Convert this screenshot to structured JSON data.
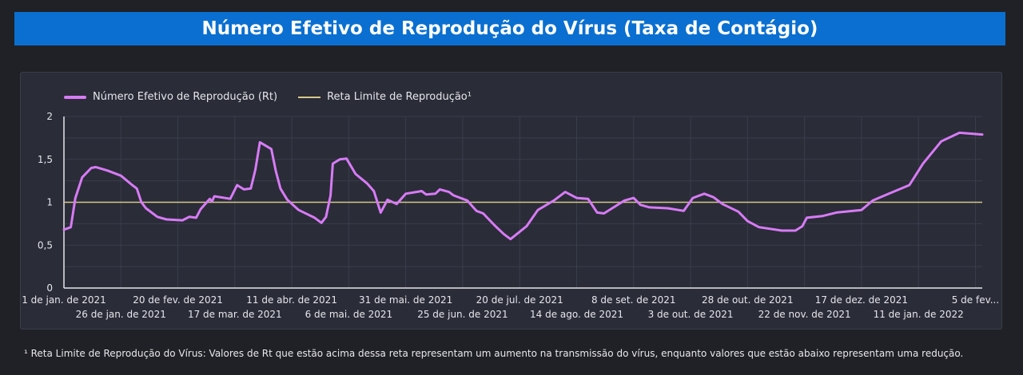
{
  "title": "Número Efetivo de Reprodução do Vírus (Taxa de Contágio)",
  "footnote": "¹ Reta Limite de Reprodução do Vírus: Valores de Rt que estão acima dessa reta representam um aumento na transmissão do vírus, enquanto valores que estão abaixo representam uma redução.",
  "colors": {
    "background": "#202126",
    "panel": "#2a2c38",
    "title_bar": "#0a6fd0",
    "series": "#d77bf5",
    "threshold": "#d4c98a"
  },
  "chart_data": {
    "type": "line",
    "title": "",
    "xlabel": "",
    "ylabel": "",
    "ylim": [
      0,
      2
    ],
    "yticks": [
      "0",
      "0,5",
      "1",
      "1,5",
      "2"
    ],
    "grid": true,
    "legend_position": "top-left",
    "xtick_labels": [
      "1 de jan. de 2021",
      "26 de jan. de 2021",
      "20 de fev. de 2021",
      "17 de mar. de 2021",
      "11 de abr. de 2021",
      "6 de mai. de 2021",
      "31 de mai. de 2021",
      "25 de jun. de 2021",
      "20 de jul. de 2021",
      "14 de ago. de 2021",
      "8 de set. de 2021",
      "3 de out. de 2021",
      "28 de out. de 2021",
      "22 de nov. de 2021",
      "17 de dez. de 2021",
      "11 de jan. de 2022",
      "5 de fev..."
    ],
    "xlim": [
      "2021-01-01",
      "2022-02-08"
    ],
    "series": [
      {
        "name": "Número Efetivo de Reprodução (Rt)",
        "color": "#d77bf5",
        "x": [
          "2021-01-01",
          "2021-01-04",
          "2021-01-06",
          "2021-01-09",
          "2021-01-13",
          "2021-01-15",
          "2021-01-20",
          "2021-01-26",
          "2021-01-31",
          "2021-02-02",
          "2021-02-04",
          "2021-02-06",
          "2021-02-11",
          "2021-02-15",
          "2021-02-22",
          "2021-02-25",
          "2021-02-28",
          "2021-03-02",
          "2021-03-06",
          "2021-03-07",
          "2021-03-08",
          "2021-03-15",
          "2021-03-18",
          "2021-03-21",
          "2021-03-24",
          "2021-03-26",
          "2021-03-28",
          "2021-04-02",
          "2021-04-04",
          "2021-04-06",
          "2021-04-09",
          "2021-04-14",
          "2021-04-21",
          "2021-04-24",
          "2021-04-26",
          "2021-04-28",
          "2021-04-29",
          "2021-05-02",
          "2021-05-05",
          "2021-05-09",
          "2021-05-14",
          "2021-05-17",
          "2021-05-20",
          "2021-05-23",
          "2021-05-27",
          "2021-05-31",
          "2021-06-07",
          "2021-06-09",
          "2021-06-13",
          "2021-06-15",
          "2021-06-19",
          "2021-06-21",
          "2021-06-27",
          "2021-07-01",
          "2021-07-04",
          "2021-07-09",
          "2021-07-13",
          "2021-07-16",
          "2021-07-23",
          "2021-07-28",
          "2021-08-04",
          "2021-08-09",
          "2021-08-14",
          "2021-08-19",
          "2021-08-23",
          "2021-08-26",
          "2021-09-04",
          "2021-09-08",
          "2021-09-11",
          "2021-09-15",
          "2021-09-23",
          "2021-09-30",
          "2021-10-04",
          "2021-10-09",
          "2021-10-13",
          "2021-10-17",
          "2021-10-24",
          "2021-10-28",
          "2021-11-02",
          "2021-11-12",
          "2021-11-18",
          "2021-11-21",
          "2021-11-23",
          "2021-11-30",
          "2021-12-06",
          "2021-12-17",
          "2021-12-22",
          "2021-12-29",
          "2022-01-07",
          "2022-01-13",
          "2022-01-21",
          "2022-01-29",
          "2022-02-08"
        ],
        "values": [
          0.68,
          0.71,
          1.05,
          1.29,
          1.4,
          1.41,
          1.37,
          1.31,
          1.2,
          1.16,
          1.0,
          0.93,
          0.83,
          0.8,
          0.79,
          0.83,
          0.82,
          0.92,
          1.04,
          1.01,
          1.07,
          1.04,
          1.2,
          1.15,
          1.16,
          1.38,
          1.7,
          1.62,
          1.36,
          1.16,
          1.03,
          0.91,
          0.82,
          0.76,
          0.83,
          1.08,
          1.45,
          1.5,
          1.51,
          1.33,
          1.22,
          1.13,
          0.88,
          1.03,
          0.98,
          1.1,
          1.13,
          1.09,
          1.1,
          1.15,
          1.12,
          1.08,
          1.02,
          0.9,
          0.87,
          0.73,
          0.63,
          0.57,
          0.72,
          0.91,
          1.02,
          1.12,
          1.05,
          1.04,
          0.88,
          0.87,
          1.02,
          1.05,
          0.97,
          0.94,
          0.93,
          0.9,
          1.05,
          1.1,
          1.06,
          0.98,
          0.89,
          0.78,
          0.71,
          0.67,
          0.67,
          0.72,
          0.82,
          0.84,
          0.88,
          0.91,
          1.02,
          1.1,
          1.2,
          1.45,
          1.71,
          1.81,
          1.79
        ]
      },
      {
        "name": "Reta Limite de Reprodução¹",
        "color": "#d4c98a",
        "constant": 1
      }
    ]
  }
}
